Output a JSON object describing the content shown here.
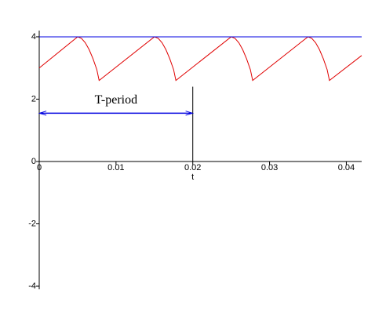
{
  "chart_data": {
    "type": "line",
    "xlabel": "t",
    "xlim": [
      0,
      0.042
    ],
    "ylim": [
      -4.1,
      4.2
    ],
    "xticks": [
      0,
      0.01,
      0.02,
      0.03,
      0.04
    ],
    "yticks": [
      -4,
      -2,
      0,
      2,
      4
    ],
    "grid": false,
    "series": [
      {
        "color": "#e00000",
        "x": [
          0,
          0.005,
          0.0055,
          0.006,
          0.0065,
          0.007,
          0.0075,
          0.0078,
          0.015,
          0.0155,
          0.016,
          0.0165,
          0.017,
          0.0175,
          0.0178,
          0.025,
          0.0255,
          0.026,
          0.0265,
          0.027,
          0.0275,
          0.0278,
          0.035,
          0.0355,
          0.036,
          0.0365,
          0.037,
          0.0375,
          0.0378,
          0.042
        ],
        "values": [
          3,
          4,
          3.95,
          3.81,
          3.59,
          3.3,
          2.95,
          2.6,
          4,
          3.95,
          3.81,
          3.59,
          3.3,
          2.95,
          2.6,
          4,
          3.95,
          3.81,
          3.59,
          3.3,
          2.95,
          2.6,
          4,
          3.95,
          3.81,
          3.59,
          3.3,
          2.95,
          2.6,
          3.4
        ]
      },
      {
        "color": "#0000e0",
        "x": [
          0,
          0.042
        ],
        "values": [
          4,
          4
        ]
      }
    ],
    "annotation": {
      "text": "T-period",
      "x": 0.01,
      "y": 1.95
    },
    "period_arrow": {
      "x": [
        0,
        0.02
      ],
      "y": 1.55,
      "color": "#0000e0"
    },
    "period_line": {
      "x": 0.02,
      "y": [
        0,
        2.4
      ]
    }
  }
}
